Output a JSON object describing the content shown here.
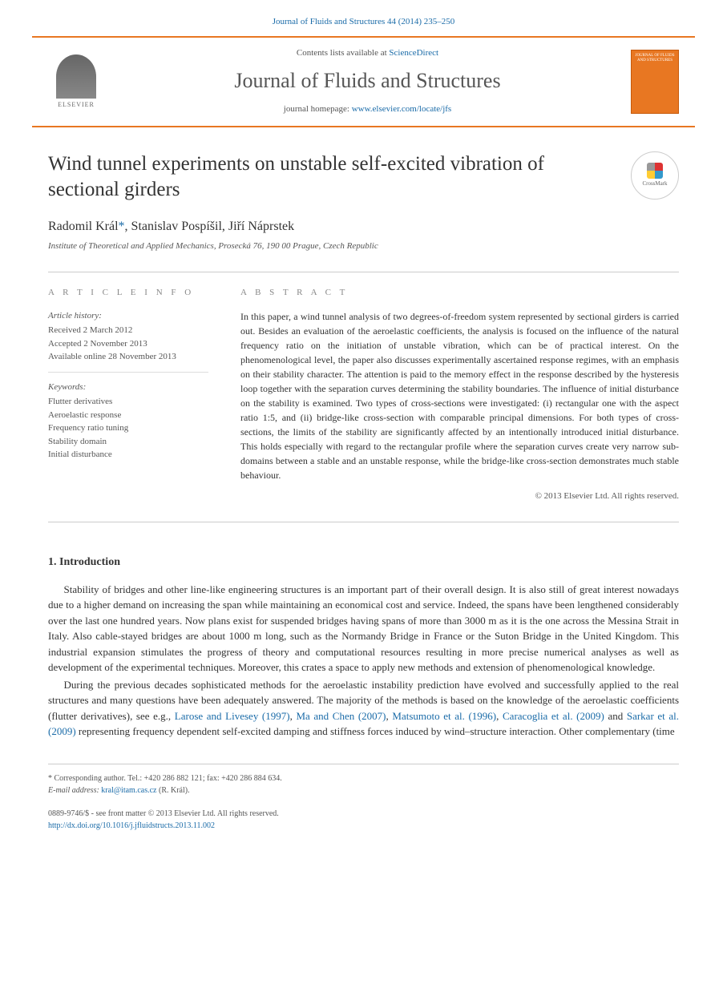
{
  "header": {
    "citation": "Journal of Fluids and Structures 44 (2014) 235–250",
    "contents_prefix": "Contents lists available at ",
    "contents_link": "ScienceDirect",
    "journal_name": "Journal of Fluids and Structures",
    "homepage_prefix": "journal homepage: ",
    "homepage_url": "www.elsevier.com/locate/jfs",
    "elsevier_label": "ELSEVIER",
    "cover_text": "JOURNAL OF FLUIDS AND STRUCTURES",
    "crossmark_label": "CrossMark"
  },
  "article": {
    "title": "Wind tunnel experiments on unstable self-excited vibration of sectional girders",
    "authors_html": "Radomil Král *, Stanislav Pospíšil, Jiří Náprstek",
    "author1": "Radomil Král",
    "corr_mark": "*",
    "author_sep1": ", ",
    "author2": "Stanislav Pospíšil",
    "author_sep2": ", ",
    "author3": "Jiří Náprstek",
    "affiliation": "Institute of Theoretical and Applied Mechanics, Prosecká 76, 190 00 Prague, Czech Republic"
  },
  "info": {
    "heading": "A R T I C L E  I N F O",
    "history_label": "Article history:",
    "received": "Received 2 March 2012",
    "accepted": "Accepted 2 November 2013",
    "online": "Available online 28 November 2013",
    "keywords_label": "Keywords:",
    "kw1": "Flutter derivatives",
    "kw2": "Aeroelastic response",
    "kw3": "Frequency ratio tuning",
    "kw4": "Stability domain",
    "kw5": "Initial disturbance"
  },
  "abstract": {
    "heading": "A B S T R A C T",
    "text": "In this paper, a wind tunnel analysis of two degrees-of-freedom system represented by sectional girders is carried out. Besides an evaluation of the aeroelastic coefficients, the analysis is focused on the influence of the natural frequency ratio on the initiation of unstable vibration, which can be of practical interest. On the phenomenological level, the paper also discusses experimentally ascertained response regimes, with an emphasis on their stability character. The attention is paid to the memory effect in the response described by the hysteresis loop together with the separation curves determining the stability boundaries. The influence of initial disturbance on the stability is examined. Two types of cross-sections were investigated: (i) rectangular one with the aspect ratio 1:5, and (ii) bridge-like cross-section with comparable principal dimensions. For both types of cross-sections, the limits of the stability are significantly affected by an intentionally introduced initial disturbance. This holds especially with regard to the rectangular profile where the separation curves create very narrow sub-domains between a stable and an unstable response, while the bridge-like cross-section demonstrates much stable behaviour.",
    "copyright": "© 2013 Elsevier Ltd. All rights reserved."
  },
  "body": {
    "section1_heading": "1.  Introduction",
    "para1": "Stability of bridges and other line-like engineering structures is an important part of their overall design. It is also still of great interest nowadays due to a higher demand on increasing the span while maintaining an economical cost and service. Indeed, the spans have been lengthened considerably over the last one hundred years. Now plans exist for suspended bridges having spans of more than 3000 m as it is the one across the Messina Strait in Italy. Also cable-stayed bridges are about 1000 m long, such as the Normandy Bridge in France or the Suton Bridge in the United Kingdom. This industrial expansion stimulates the progress of theory and computational resources resulting in more precise numerical analyses as well as development of the experimental techniques. Moreover, this crates a space to apply new methods and extension of phenomenological knowledge.",
    "para2_pre": "During the previous decades sophisticated methods for the aeroelastic instability prediction have evolved and successfully applied to the real structures and many questions have been adequately answered. The majority of the methods is based on the knowledge of the aeroelastic coefficients (flutter derivatives), see e.g., ",
    "cite1": "Larose and Livesey (1997)",
    "sep1": ", ",
    "cite2": "Ma and Chen (2007)",
    "sep2": ", ",
    "cite3": "Matsumoto et al. (1996)",
    "sep3": ", ",
    "cite4": "Caracoglia et al. (2009)",
    "sep4": " and ",
    "cite5": "Sarkar et al. (2009)",
    "para2_post": " representing frequency dependent self-excited damping and stiffness forces induced by wind–structure interaction. Other complementary (time"
  },
  "footer": {
    "corr_note_prefix": "* Corresponding author. Tel.: ",
    "tel": "+420 286 882 121",
    "fax_prefix": "; fax: ",
    "fax": "+420 286 884 634.",
    "email_label": "E-mail address: ",
    "email": "kral@itam.cas.cz",
    "email_suffix": " (R. Král).",
    "issn_line": "0889-9746/$ - see front matter © 2013 Elsevier Ltd. All rights reserved.",
    "doi": "http://dx.doi.org/10.1016/j.jfluidstructs.2013.11.002"
  },
  "colors": {
    "link": "#1a6ba8",
    "accent": "#e87722"
  }
}
